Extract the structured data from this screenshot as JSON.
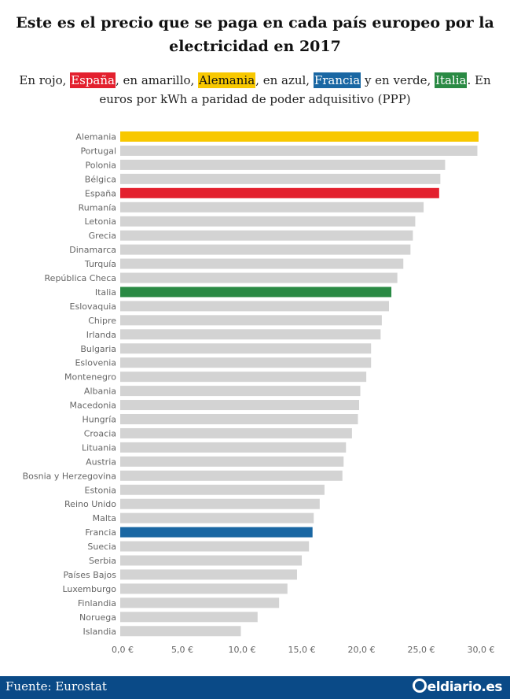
{
  "title": "Este es el precio que se paga en cada país europeo por la electricidad en 2017",
  "subtitle": {
    "part1": "En rojo, ",
    "spain": "España",
    "part2": ", en amarillo, ",
    "germany": "Alemania",
    "part3": ", en azul, ",
    "france": "Francia",
    "part4": " y en verde, ",
    "italy": "Italia",
    "part5": ". En euros por kWh a paridad de poder adquisitivo (PPP)"
  },
  "colors": {
    "default_bar": "#d3d3d3",
    "spain": "#e3202e",
    "germany": "#f8c800",
    "france": "#1a67a3",
    "italy": "#2a8a44",
    "footer": "#0a4a87"
  },
  "footer": {
    "source": "Fuente: Eurostat",
    "logo": "eldiario.es"
  },
  "chart_data": {
    "type": "bar",
    "orientation": "horizontal",
    "xlim": [
      0,
      30
    ],
    "x_ticks": [
      "0,0 €",
      "5,0 €",
      "10,0 €",
      "15,0 €",
      "20,0 €",
      "25,0 €",
      "30,0 €"
    ],
    "grid": false,
    "categories": [
      "Alemania",
      "Portugal",
      "Polonia",
      "Bélgica",
      "España",
      "Rumanía",
      "Letonia",
      "Grecia",
      "Dinamarca",
      "Turquía",
      "República Checa",
      "Italia",
      "Eslovaquia",
      "Chipre",
      "Irlanda",
      "Bulgaria",
      "Eslovenia",
      "Montenegro",
      "Albania",
      "Macedonia",
      "Hungría",
      "Croacia",
      "Lituania",
      "Austria",
      "Bosnia y Herzegovina",
      "Estonia",
      "Reino Unido",
      "Malta",
      "Francia",
      "Suecia",
      "Serbia",
      "Países Bajos",
      "Luxemburgo",
      "Finlandia",
      "Noruega",
      "Islandia"
    ],
    "values": [
      30.0,
      29.9,
      27.2,
      26.8,
      26.7,
      25.4,
      24.7,
      24.5,
      24.3,
      23.7,
      23.2,
      22.7,
      22.5,
      21.9,
      21.8,
      21.0,
      21.0,
      20.6,
      20.1,
      20.0,
      19.9,
      19.4,
      18.9,
      18.7,
      18.6,
      17.1,
      16.7,
      16.2,
      16.1,
      15.8,
      15.2,
      14.8,
      14.0,
      13.3,
      11.5,
      10.1
    ],
    "highlight": {
      "Alemania": "germany",
      "España": "spain",
      "Italia": "italy",
      "Francia": "france"
    }
  }
}
